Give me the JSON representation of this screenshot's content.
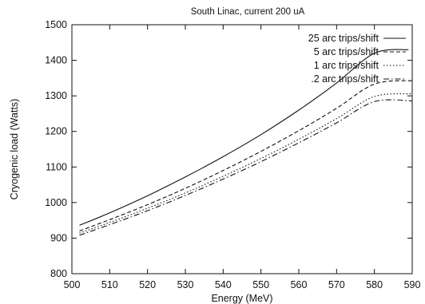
{
  "chart_data": {
    "type": "line",
    "title": "South Linac, current 200 uA",
    "xlabel": "Energy (MeV)",
    "ylabel": "Cryogenic load (Watts)",
    "xlim": [
      500,
      590
    ],
    "ylim": [
      800,
      1500
    ],
    "x_ticks": [
      "500",
      "510",
      "520",
      "530",
      "540",
      "550",
      "560",
      "570",
      "580",
      "590"
    ],
    "y_ticks": [
      "800",
      "900",
      "1000",
      "1100",
      "1200",
      "1300",
      "1400",
      "1500"
    ],
    "grid": false,
    "legend_position": "top-right",
    "series": [
      {
        "name": "25 arc trips/shift",
        "style": "solid",
        "x": [
          502,
          510,
          520,
          530,
          540,
          550,
          560,
          570,
          580,
          589
        ],
        "y": [
          936,
          971,
          1019,
          1072,
          1129,
          1191,
          1260,
          1336,
          1420,
          1430
        ]
      },
      {
        "name": "5 arc trips/shift",
        "style": "dashed",
        "x": [
          502,
          510,
          520,
          530,
          540,
          550,
          560,
          570,
          580,
          590
        ],
        "y": [
          920,
          952,
          994,
          1040,
          1090,
          1144,
          1202,
          1265,
          1333,
          1343
        ]
      },
      {
        "name": "1 arc trips/shift",
        "style": "dotted",
        "x": [
          502,
          510,
          520,
          530,
          540,
          550,
          560,
          570,
          580,
          590
        ],
        "y": [
          914,
          944,
          984,
          1027,
          1074,
          1124,
          1178,
          1236,
          1298,
          1306
        ]
      },
      {
        "name": ".2 arc trips/shift",
        "style": "dash-dot",
        "x": [
          502,
          510,
          520,
          530,
          540,
          550,
          560,
          570,
          580,
          590
        ],
        "y": [
          908,
          938,
          977,
          1020,
          1066,
          1115,
          1168,
          1224,
          1284,
          1286
        ]
      }
    ]
  }
}
